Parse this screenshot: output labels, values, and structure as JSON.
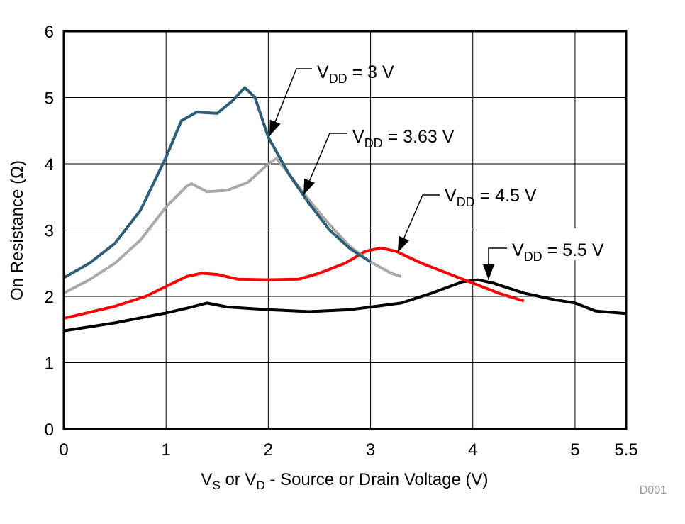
{
  "chart_data": {
    "type": "line",
    "title": "",
    "xlabel": {
      "main1": "V",
      "sub1": "S",
      "mid": " or V",
      "sub2": "D",
      "rest": " - Source or Drain Voltage (V)"
    },
    "ylabel": "On Resistance (Ω)",
    "xlim": [
      0,
      5.5
    ],
    "ylim": [
      0,
      6
    ],
    "x_ticks": [
      "0",
      "1",
      "2",
      "3",
      "4",
      "5",
      "5.5"
    ],
    "x_tick_values": [
      0,
      1,
      2,
      3,
      4,
      5,
      5.5
    ],
    "y_ticks": [
      "0",
      "1",
      "2",
      "3",
      "4",
      "5",
      "6"
    ],
    "y_tick_values": [
      0,
      1,
      2,
      3,
      4,
      5,
      6
    ],
    "grid": true,
    "footnote": "D001",
    "series": [
      {
        "name": "VDD = 3 V",
        "label": {
          "v": "V",
          "sub": "DD",
          "rest": " = 3 V"
        },
        "color": "#2e5e78",
        "x": [
          0,
          0.25,
          0.5,
          0.75,
          1.0,
          1.15,
          1.3,
          1.5,
          1.65,
          1.77,
          1.87,
          2.0,
          2.2,
          2.4,
          2.6,
          2.8,
          3.0
        ],
        "y": [
          2.28,
          2.5,
          2.8,
          3.3,
          4.1,
          4.65,
          4.78,
          4.76,
          4.95,
          5.15,
          5.0,
          4.4,
          3.85,
          3.4,
          3.0,
          2.72,
          2.52
        ]
      },
      {
        "name": "VDD = 3.63 V",
        "label": {
          "v": "V",
          "sub": "DD",
          "rest": " = 3.63 V"
        },
        "color": "#aaaaaa",
        "x": [
          0,
          0.25,
          0.5,
          0.75,
          1.0,
          1.2,
          1.25,
          1.4,
          1.6,
          1.8,
          2.0,
          2.08,
          2.2,
          2.4,
          2.6,
          2.8,
          3.0,
          3.2,
          3.3
        ],
        "y": [
          2.05,
          2.25,
          2.5,
          2.85,
          3.35,
          3.66,
          3.7,
          3.58,
          3.6,
          3.72,
          4.0,
          4.08,
          3.85,
          3.45,
          3.08,
          2.75,
          2.52,
          2.35,
          2.3
        ]
      },
      {
        "name": "VDD = 4.5 V",
        "label": {
          "v": "V",
          "sub": "DD",
          "rest": " = 4.5 V"
        },
        "color": "#ff0000",
        "x": [
          0,
          0.5,
          0.8,
          1.0,
          1.2,
          1.35,
          1.5,
          1.7,
          2.0,
          2.3,
          2.5,
          2.75,
          2.95,
          3.1,
          3.25,
          3.5,
          3.75,
          4.0,
          4.25,
          4.5
        ],
        "y": [
          1.67,
          1.85,
          2.0,
          2.15,
          2.3,
          2.35,
          2.33,
          2.26,
          2.25,
          2.26,
          2.35,
          2.5,
          2.68,
          2.73,
          2.68,
          2.5,
          2.35,
          2.2,
          2.05,
          1.93
        ]
      },
      {
        "name": "VDD = 5.5 V",
        "label": {
          "v": "V",
          "sub": "DD",
          "rest": " = 5.5 V"
        },
        "color": "#000000",
        "x": [
          0,
          0.5,
          1.0,
          1.2,
          1.4,
          1.6,
          2.0,
          2.4,
          2.8,
          3.0,
          3.3,
          3.6,
          3.9,
          4.05,
          4.2,
          4.5,
          4.8,
          5.0,
          5.2,
          5.5
        ],
        "y": [
          1.48,
          1.6,
          1.75,
          1.82,
          1.9,
          1.84,
          1.8,
          1.77,
          1.8,
          1.84,
          1.9,
          2.05,
          2.22,
          2.25,
          2.2,
          2.05,
          1.95,
          1.9,
          1.78,
          1.74
        ]
      }
    ]
  }
}
